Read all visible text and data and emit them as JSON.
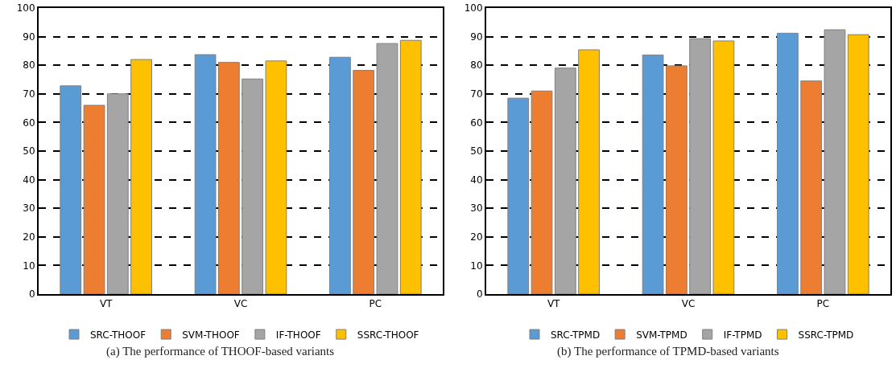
{
  "chart_data": [
    {
      "type": "bar",
      "categories": [
        "VT",
        "VC",
        "PC"
      ],
      "ylim": [
        0,
        100
      ],
      "yticks": [
        0,
        10,
        20,
        30,
        40,
        50,
        60,
        70,
        80,
        90,
        100
      ],
      "grid": "y",
      "legend": "bottom",
      "annotations": [
        "(a) The performance of THOOF-based variants"
      ],
      "series": [
        {
          "name": "SRC-THOOF",
          "color": "#5b9bd5",
          "values": [
            72.8,
            83.7,
            82.8
          ]
        },
        {
          "name": "SVM-THOOF",
          "color": "#ed7d31",
          "values": [
            66,
            81,
            78.2
          ]
        },
        {
          "name": "IF-THOOF",
          "color": "#a5a5a5",
          "values": [
            70,
            75.2,
            87.6
          ]
        },
        {
          "name": "SSRC-THOOF",
          "color": "#ffc000",
          "values": [
            82,
            81.5,
            88.7
          ]
        }
      ]
    },
    {
      "type": "bar",
      "categories": [
        "VT",
        "VC",
        "PC"
      ],
      "ylim": [
        0,
        100
      ],
      "yticks": [
        0,
        10,
        20,
        30,
        40,
        50,
        60,
        70,
        80,
        90,
        100
      ],
      "grid": "y",
      "legend": "bottom",
      "annotations": [
        "(b) The performance of TPMD-based variants"
      ],
      "series": [
        {
          "name": "SRC-TPMD",
          "color": "#5b9bd5",
          "values": [
            68.5,
            83.6,
            91.2
          ]
        },
        {
          "name": "SVM-TPMD",
          "color": "#ed7d31",
          "values": [
            71,
            79.8,
            74.5
          ]
        },
        {
          "name": "IF-TPMD",
          "color": "#a5a5a5",
          "values": [
            79,
            89.3,
            92.4
          ]
        },
        {
          "name": "SSRC-TPMD",
          "color": "#ffc000",
          "values": [
            85.4,
            88.5,
            90.7
          ]
        }
      ]
    }
  ]
}
